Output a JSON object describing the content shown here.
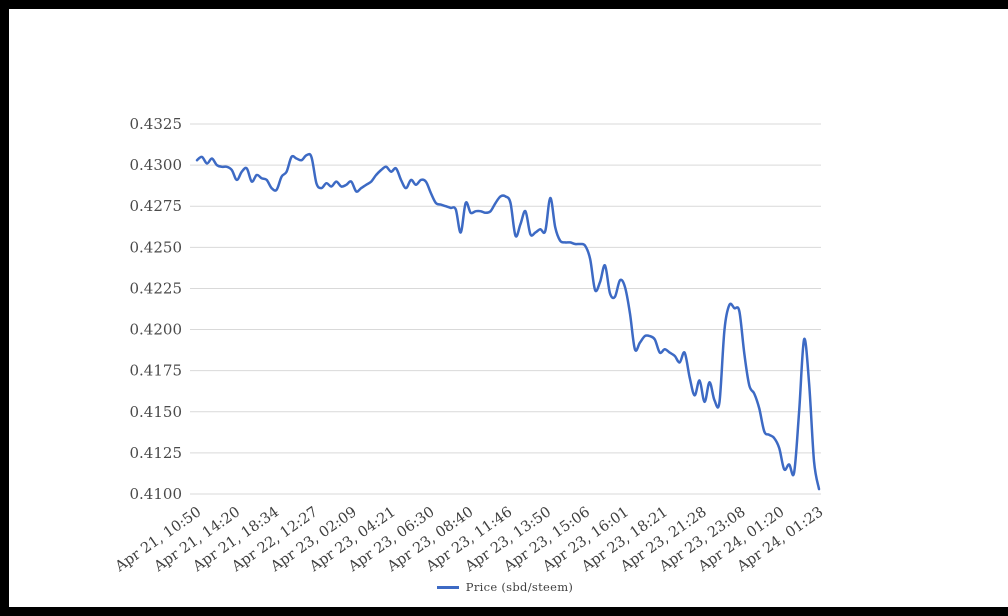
{
  "window": {
    "frame_color": "#000000",
    "page_background": "#ffffff"
  },
  "legend": {
    "label": "Price (sbd/steem)"
  },
  "chart_data": {
    "type": "line",
    "title": "",
    "xlabel": "",
    "ylabel": "",
    "grid": true,
    "legend_position": "bottom",
    "line_color": "#3d6ac4",
    "grid_color": "#d9d9d9",
    "y_axis": {
      "min": 0.41,
      "max": 0.4325,
      "tick_step": 0.0025,
      "tick_labels": [
        "0.4100",
        "0.4125",
        "0.4150",
        "0.4175",
        "0.4200",
        "0.4225",
        "0.4250",
        "0.4275",
        "0.4300",
        "0.4325"
      ]
    },
    "x_tick_labels": [
      "Apr 21, 10:50",
      "Apr 21, 14:20",
      "Apr 21, 18:34",
      "Apr 22, 12:27",
      "Apr 23, 02:09",
      "Apr 23, 04:21",
      "Apr 23, 06:30",
      "Apr 23, 08:40",
      "Apr 23, 11:46",
      "Apr 23, 13:50",
      "Apr 23, 15:06",
      "Apr 23, 16:01",
      "Apr 23, 18:21",
      "Apr 23, 21:28",
      "Apr 23, 23:08",
      "Apr 24, 01:20",
      "Apr 24, 01:23"
    ],
    "series": [
      {
        "name": "Price (sbd/steem)",
        "color": "#3d6ac4",
        "values": [
          0.4303,
          0.4305,
          0.4301,
          0.4304,
          0.43,
          0.4299,
          0.4299,
          0.4297,
          0.4291,
          0.4296,
          0.4298,
          0.429,
          0.4294,
          0.4292,
          0.4291,
          0.4286,
          0.4285,
          0.4293,
          0.4296,
          0.4305,
          0.4304,
          0.4303,
          0.4306,
          0.4305,
          0.4289,
          0.4286,
          0.4289,
          0.4287,
          0.429,
          0.4287,
          0.4288,
          0.429,
          0.4284,
          0.4286,
          0.4288,
          0.429,
          0.4294,
          0.4297,
          0.4299,
          0.4296,
          0.4298,
          0.4291,
          0.4286,
          0.4291,
          0.4288,
          0.4291,
          0.429,
          0.4283,
          0.4277,
          0.4276,
          0.4275,
          0.4274,
          0.4273,
          0.4259,
          0.4277,
          0.4271,
          0.4272,
          0.4272,
          0.4271,
          0.4272,
          0.4277,
          0.4281,
          0.4281,
          0.4277,
          0.4257,
          0.4264,
          0.4272,
          0.4258,
          0.4259,
          0.4261,
          0.426,
          0.428,
          0.4262,
          0.4254,
          0.4253,
          0.4253,
          0.4252,
          0.4252,
          0.4251,
          0.4243,
          0.4224,
          0.4229,
          0.4239,
          0.4222,
          0.422,
          0.423,
          0.4226,
          0.421,
          0.4188,
          0.4192,
          0.4196,
          0.4196,
          0.4194,
          0.4186,
          0.4188,
          0.4186,
          0.4184,
          0.418,
          0.4186,
          0.4171,
          0.416,
          0.4169,
          0.4156,
          0.4168,
          0.4157,
          0.4156,
          0.42,
          0.4215,
          0.4213,
          0.4211,
          0.4185,
          0.4166,
          0.4161,
          0.4152,
          0.4138,
          0.4136,
          0.4134,
          0.4128,
          0.4115,
          0.4118,
          0.4113,
          0.415,
          0.4194,
          0.4168,
          0.412,
          0.4103
        ]
      }
    ]
  }
}
